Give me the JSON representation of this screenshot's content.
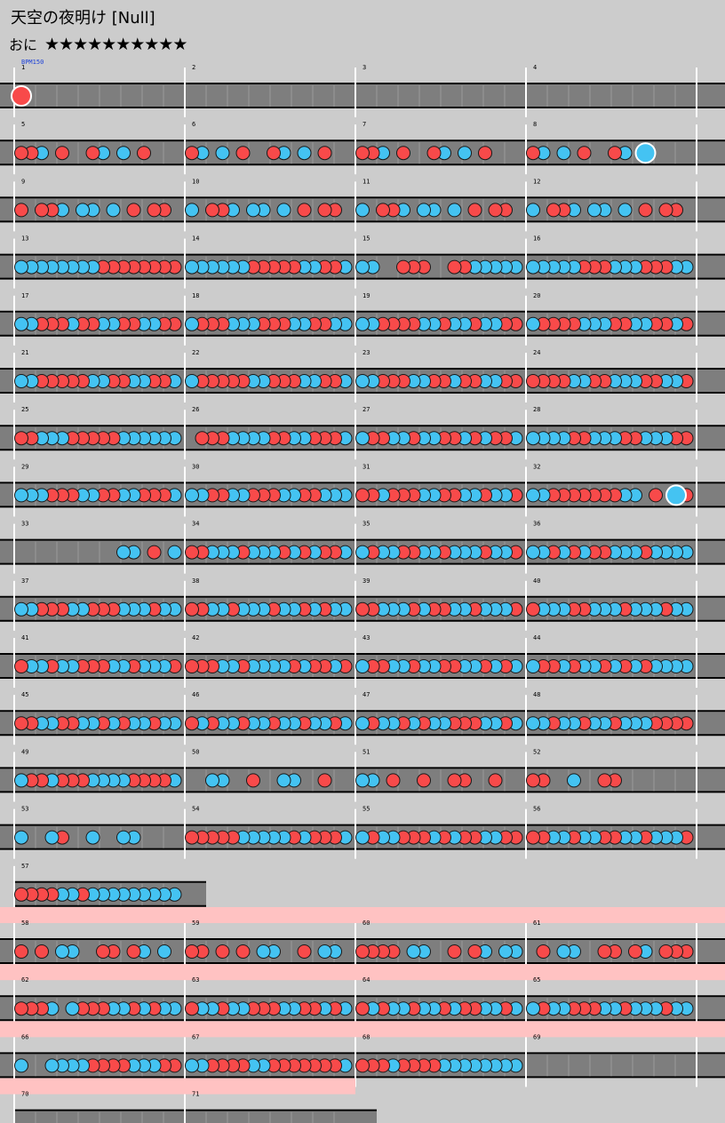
{
  "song": {
    "title": "天空の夜明け [Null]",
    "difficulty_label": "おに",
    "stars": "★★★★★★★★★★"
  },
  "chart_data": {
    "type": "taiko-note-chart",
    "bpm_label": "BPM150",
    "measures_per_row": 4,
    "colors": {
      "background": "#cccccc",
      "lane": "#7e7e7e",
      "gogo_band": "#ffc2c2",
      "don_red": "#f84a4a",
      "ka_blue": "#44c3f2",
      "barline": "#ffffff",
      "text": "#000000"
    },
    "legend": {
      "d": "don (red)",
      "k": "ka (blue)",
      "D": "big don",
      "K": "big ka"
    },
    "rows": [
      {
        "gogo": false,
        "measures": [
          {
            "n": "1",
            "notes": "D..............."
          },
          {
            "n": "2",
            "notes": ""
          },
          {
            "n": "3",
            "notes": ""
          },
          {
            "n": "4",
            "notes": ""
          }
        ]
      },
      {
        "gogo": false,
        "measures": [
          {
            "n": "5",
            "notes": "ddk.d..dk.k.d..."
          },
          {
            "n": "6",
            "notes": "dk.k.d..dk.k.d.."
          },
          {
            "n": "7",
            "notes": "ddk.d..dk.k.d..."
          },
          {
            "n": "8",
            "notes": "dk.k.d..dk.K...."
          }
        ]
      },
      {
        "gogo": false,
        "measures": [
          {
            "n": "9",
            "notes": "d.ddk.kk.k.d.dd."
          },
          {
            "n": "10",
            "notes": "k.ddk.kk.k.d.dd."
          },
          {
            "n": "11",
            "notes": "k.ddk.kk.k.d.dd."
          },
          {
            "n": "12",
            "notes": "k.ddk.kk.k.d.dd."
          }
        ]
      },
      {
        "gogo": false,
        "measures": [
          {
            "n": "13",
            "notes": "kkkkkkkkdddddddd"
          },
          {
            "n": "14",
            "notes": "kkkkkkdddddkkddk"
          },
          {
            "n": "15",
            "notes": "kk..ddd..ddkkkkk"
          },
          {
            "n": "16",
            "notes": "kkkkkdddkkkdddkk"
          }
        ]
      },
      {
        "gogo": false,
        "measures": [
          {
            "n": "17",
            "notes": "kkdddkddkkddkkdd"
          },
          {
            "n": "18",
            "notes": "kdddkkkdddkkddkk"
          },
          {
            "n": "19",
            "notes": "kkddddkkdkkdkkdd"
          },
          {
            "n": "20",
            "notes": "kddddkkkddkkddkd"
          }
        ]
      },
      {
        "gogo": false,
        "measures": [
          {
            "n": "21",
            "notes": "kkdddddkkddkkddk"
          },
          {
            "n": "22",
            "notes": "kdddddkkdddkkddk"
          },
          {
            "n": "23",
            "notes": "kkdddkkddkddkkdd"
          },
          {
            "n": "24",
            "notes": "ddddkkddkkkddkkd"
          }
        ]
      },
      {
        "gogo": false,
        "measures": [
          {
            "n": "25",
            "notes": "ddkkkdddddkkkkkk"
          },
          {
            "n": "26",
            "notes": ".dddkkkkddkkdddk"
          },
          {
            "n": "27",
            "notes": "kddkkdkkddkdkddk"
          },
          {
            "n": "28",
            "notes": "kkkkddkkkddkkkdd"
          }
        ]
      },
      {
        "gogo": false,
        "measures": [
          {
            "n": "29",
            "notes": "kkkdddkkddkkdddk"
          },
          {
            "n": "30",
            "notes": "kkddkkdddkkddkkk"
          },
          {
            "n": "31",
            "notes": "ddkdddkkddkkdkkd"
          },
          {
            "n": "32",
            "notes": "kkdddddddkk.d.Kd"
          }
        ]
      },
      {
        "gogo": false,
        "measures": [
          {
            "n": "33",
            "notes": "..........kk.d.k"
          },
          {
            "n": "34",
            "notes": "ddkkkdkkkdkdkddk"
          },
          {
            "n": "35",
            "notes": "kdkkddkkdkkkdkkd"
          },
          {
            "n": "36",
            "notes": "kkdkdkddkkkdkkkk"
          }
        ]
      },
      {
        "gogo": false,
        "measures": [
          {
            "n": "37",
            "notes": "kkdddkkdddkkkdkk"
          },
          {
            "n": "38",
            "notes": "ddkkdkkkdkkdkdkk"
          },
          {
            "n": "39",
            "notes": "ddkkkdkddkkdkkkd"
          },
          {
            "n": "40",
            "notes": "dkkkddkkkdkkkdkk"
          }
        ]
      },
      {
        "gogo": false,
        "measures": [
          {
            "n": "41",
            "notes": "dkkdkkdddkkdkkkd"
          },
          {
            "n": "42",
            "notes": "dddkkdkkkkdkddkd"
          },
          {
            "n": "43",
            "notes": "kddkkdkkddkkdkdk"
          },
          {
            "n": "44",
            "notes": "kddkdkkdkdkdkkkk"
          }
        ]
      },
      {
        "gogo": false,
        "measures": [
          {
            "n": "45",
            "notes": "ddkkddkkdkdkkdkk"
          },
          {
            "n": "46",
            "notes": "dkdkkdkkdkkdkkdk"
          },
          {
            "n": "47",
            "notes": "kdkkdkdkkdddkkdk"
          },
          {
            "n": "48",
            "notes": "kkdkkdkkdkkkdddd"
          }
        ]
      },
      {
        "gogo": false,
        "measures": [
          {
            "n": "49",
            "notes": "kddkdddkkkkddddk"
          },
          {
            "n": "50",
            "notes": "..kk..d..kk..d.."
          },
          {
            "n": "51",
            "notes": "kk.d..d..dd..d.."
          },
          {
            "n": "52",
            "notes": "dd..k..dd......."
          }
        ]
      },
      {
        "gogo": false,
        "measures": [
          {
            "n": "53",
            "notes": "k..kd..k..kk...."
          },
          {
            "n": "54",
            "notes": "dddddkkkkkdkdddk"
          },
          {
            "n": "55",
            "notes": "kdkkdddkdkddkkdd"
          },
          {
            "n": "56",
            "notes": "ddkkdkkddkkdkkkd"
          }
        ]
      },
      {
        "gogo": false,
        "measures": [
          {
            "n": "57",
            "notes": "ddddkkdkkkkkkkkk"
          }
        ]
      },
      {
        "gogo": true,
        "measures": [
          {
            "n": "58",
            "notes": "d.d.kk..dd.dk.k."
          },
          {
            "n": "59",
            "notes": "dd.d.d.kk..d.kk."
          },
          {
            "n": "60",
            "notes": "dddd.kk..d.dk.kk"
          },
          {
            "n": "61",
            "notes": ".d.kk..dd.dk.ddd"
          }
        ]
      },
      {
        "gogo": true,
        "measures": [
          {
            "n": "62",
            "notes": "dddk.kdddkkdkdkk"
          },
          {
            "n": "63",
            "notes": "dkkdkkdddkkddkdk"
          },
          {
            "n": "64",
            "notes": "dkdkkdkkdkddkkdk"
          },
          {
            "n": "65",
            "notes": "kdkkdddkkdkkkdkk"
          }
        ]
      },
      {
        "gogo": true,
        "measures": [
          {
            "n": "66",
            "notes": "k..kkkkddddkkkdd"
          },
          {
            "n": "67",
            "notes": "kkddddkkdddddddk"
          },
          {
            "n": "68",
            "notes": "dddkddddkkkkkkkk"
          },
          {
            "n": "69",
            "notes": ""
          }
        ]
      },
      {
        "gogo": true,
        "measures": [
          {
            "n": "70",
            "notes": ""
          },
          {
            "n": "71",
            "notes": ""
          }
        ]
      }
    ]
  }
}
